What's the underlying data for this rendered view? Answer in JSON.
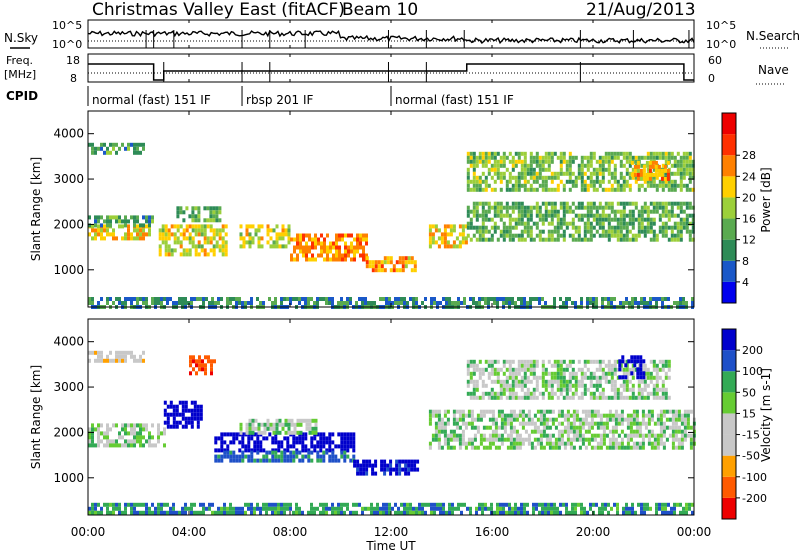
{
  "header": {
    "radar": "Christmas Valley East (fitACF)",
    "beam": "Beam 10",
    "date": "21/Aug/2013"
  },
  "noise_panel": {
    "left_label": "N.Sky",
    "left_ticks": [
      "10^5",
      "10^0"
    ],
    "right_label": "N.Search",
    "right_ticks": [
      "10^5",
      "10^0"
    ]
  },
  "freq_panel": {
    "left_label_1": "Freq.",
    "left_label_2": "[MHz]",
    "left_ticks": [
      "18",
      "8"
    ],
    "right_label": "Nave",
    "right_ticks": [
      "60",
      "0"
    ]
  },
  "cpid_panel": {
    "label": "CPID",
    "segments": [
      {
        "text": "normal (fast) 151 IF",
        "start_hour": 0.0,
        "end_hour": 6.1
      },
      {
        "text": "rbsp 201 IF",
        "start_hour": 6.1,
        "end_hour": 12.0
      },
      {
        "text": "normal (fast) 151 IF",
        "start_hour": 12.0,
        "end_hour": 24.0
      }
    ]
  },
  "time_axis": {
    "label": "Time UT",
    "ticks": [
      "00:00",
      "04:00",
      "08:00",
      "12:00",
      "16:00",
      "20:00",
      "00:00"
    ]
  },
  "chart_data": [
    {
      "type": "heatmap",
      "parameter": "Power",
      "ylabel": "Slant Range [km]",
      "colorbar_label": "Power [dB]",
      "colorbar_ticks": [
        "4",
        "8",
        "12",
        "16",
        "20",
        "24",
        "28"
      ],
      "xlim_hours": [
        0,
        24
      ],
      "ylim_km": [
        180,
        4500
      ],
      "yticks": [
        1000,
        2000,
        3000,
        4000
      ],
      "bands": [
        {
          "t0": 0.0,
          "t1": 2.2,
          "r0": 3600,
          "r1": 3800,
          "value_db": 12
        },
        {
          "t0": 0.0,
          "t1": 2.5,
          "r0": 1700,
          "r1": 2000,
          "value_db": 22
        },
        {
          "t0": 0.0,
          "t1": 2.5,
          "r0": 2000,
          "r1": 2200,
          "value_db": 12
        },
        {
          "t0": 2.8,
          "t1": 5.5,
          "r0": 1300,
          "r1": 2000,
          "value_db": 20
        },
        {
          "t0": 3.5,
          "t1": 5.2,
          "r0": 2100,
          "r1": 2400,
          "value_db": 14
        },
        {
          "t0": 6.0,
          "t1": 8.0,
          "r0": 1500,
          "r1": 2000,
          "value_db": 20
        },
        {
          "t0": 8.0,
          "t1": 11.0,
          "r0": 1200,
          "r1": 1800,
          "value_db": 26
        },
        {
          "t0": 11.0,
          "t1": 13.0,
          "r0": 1000,
          "r1": 1300,
          "value_db": 24
        },
        {
          "t0": 13.5,
          "t1": 15.0,
          "r0": 1500,
          "r1": 2000,
          "value_db": 22
        },
        {
          "t0": 15.0,
          "t1": 24.0,
          "r0": 1700,
          "r1": 2500,
          "value_db": 14
        },
        {
          "t0": 15.0,
          "t1": 24.0,
          "r0": 2800,
          "r1": 3600,
          "value_db": 16
        },
        {
          "t0": 21.5,
          "t1": 23.0,
          "r0": 3000,
          "r1": 3400,
          "value_db": 24
        },
        {
          "t0": 0.0,
          "t1": 24.0,
          "r0": 200,
          "r1": 400,
          "value_db": 10
        }
      ]
    },
    {
      "type": "heatmap",
      "parameter": "Velocity",
      "ylabel": "Slant Range [km]",
      "colorbar_label": "Velocity [m s-1]",
      "colorbar_ticks": [
        "-200",
        "-100",
        "-50",
        "-15",
        "15",
        "50",
        "100",
        "200"
      ],
      "xlim_hours": [
        0,
        24
      ],
      "ylim_km": [
        180,
        4500
      ],
      "yticks": [
        1000,
        2000,
        3000,
        4000
      ],
      "bands": [
        {
          "t0": 0.0,
          "t1": 2.2,
          "r0": 3600,
          "r1": 3800,
          "value_ms": -30
        },
        {
          "t0": 0.0,
          "t1": 3.0,
          "r0": 1700,
          "r1": 2200,
          "value_ms": 0
        },
        {
          "t0": 3.0,
          "t1": 4.5,
          "r0": 2100,
          "r1": 2700,
          "value_ms": 180
        },
        {
          "t0": 4.0,
          "t1": 5.0,
          "r0": 3300,
          "r1": 3700,
          "value_ms": -180
        },
        {
          "t0": 5.0,
          "t1": 10.5,
          "r0": 1600,
          "r1": 2000,
          "value_ms": 200
        },
        {
          "t0": 5.0,
          "t1": 10.5,
          "r0": 1400,
          "r1": 1600,
          "value_ms": 60
        },
        {
          "t0": 6.0,
          "t1": 9.0,
          "r0": 2000,
          "r1": 2300,
          "value_ms": 0
        },
        {
          "t0": 10.5,
          "t1": 13.0,
          "r0": 1100,
          "r1": 1400,
          "value_ms": 120
        },
        {
          "t0": 13.5,
          "t1": 24.0,
          "r0": 1700,
          "r1": 2500,
          "value_ms": 0
        },
        {
          "t0": 15.0,
          "t1": 23.0,
          "r0": 2800,
          "r1": 3600,
          "value_ms": 0
        },
        {
          "t0": 21.0,
          "t1": 22.0,
          "r0": 3200,
          "r1": 3700,
          "value_ms": 220
        },
        {
          "t0": 0.0,
          "t1": 24.0,
          "r0": 200,
          "r1": 450,
          "value_ms": 40
        }
      ]
    }
  ]
}
